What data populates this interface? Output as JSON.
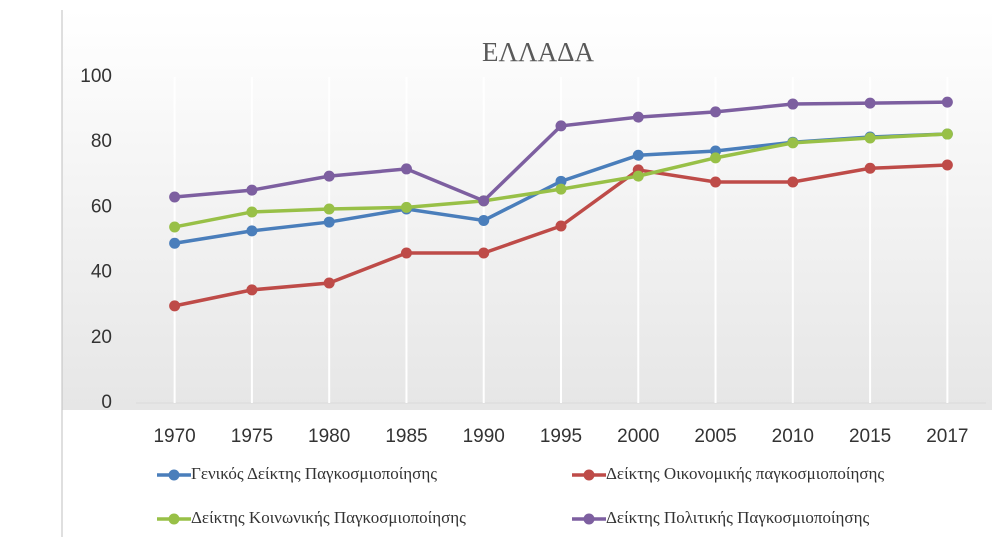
{
  "chart_data": {
    "type": "line",
    "title": "ΕΛΛΑΔΑ",
    "categories": [
      "1970",
      "1975",
      "1980",
      "1985",
      "1990",
      "1995",
      "2000",
      "2005",
      "2010",
      "2015",
      "2017"
    ],
    "series": [
      {
        "name": "Γενικός Δείκτης Παγκοσμιοποίησης",
        "color": "#4a7ebb",
        "values": [
          49,
          52.8,
          55.5,
          59.5,
          56,
          68,
          76,
          77.3,
          80,
          81.6,
          82.5
        ]
      },
      {
        "name": "Δείκτης Οικονομικής παγκοσμιοποίησης",
        "color": "#be4b48",
        "values": [
          29.8,
          34.7,
          36.8,
          46,
          46,
          54.3,
          71.5,
          67.8,
          67.8,
          72,
          73
        ]
      },
      {
        "name": "Δείκτης Κοινωνικής Παγκοσμιοποίησης",
        "color": "#98c047",
        "values": [
          54,
          58.6,
          59.5,
          60,
          62,
          65.6,
          69.6,
          75.2,
          79.8,
          81.3,
          82.5
        ]
      },
      {
        "name": "Δείκτης Πολιτικής Παγκοσμιοποίησης",
        "color": "#7d5fa0",
        "values": [
          63.2,
          65.3,
          69.6,
          71.8,
          62,
          85,
          87.7,
          89.3,
          91.7,
          92,
          92.3
        ]
      }
    ],
    "ylim": [
      0,
      100
    ],
    "yticks": [
      0,
      20,
      40,
      60,
      80,
      100
    ],
    "grid": true
  }
}
